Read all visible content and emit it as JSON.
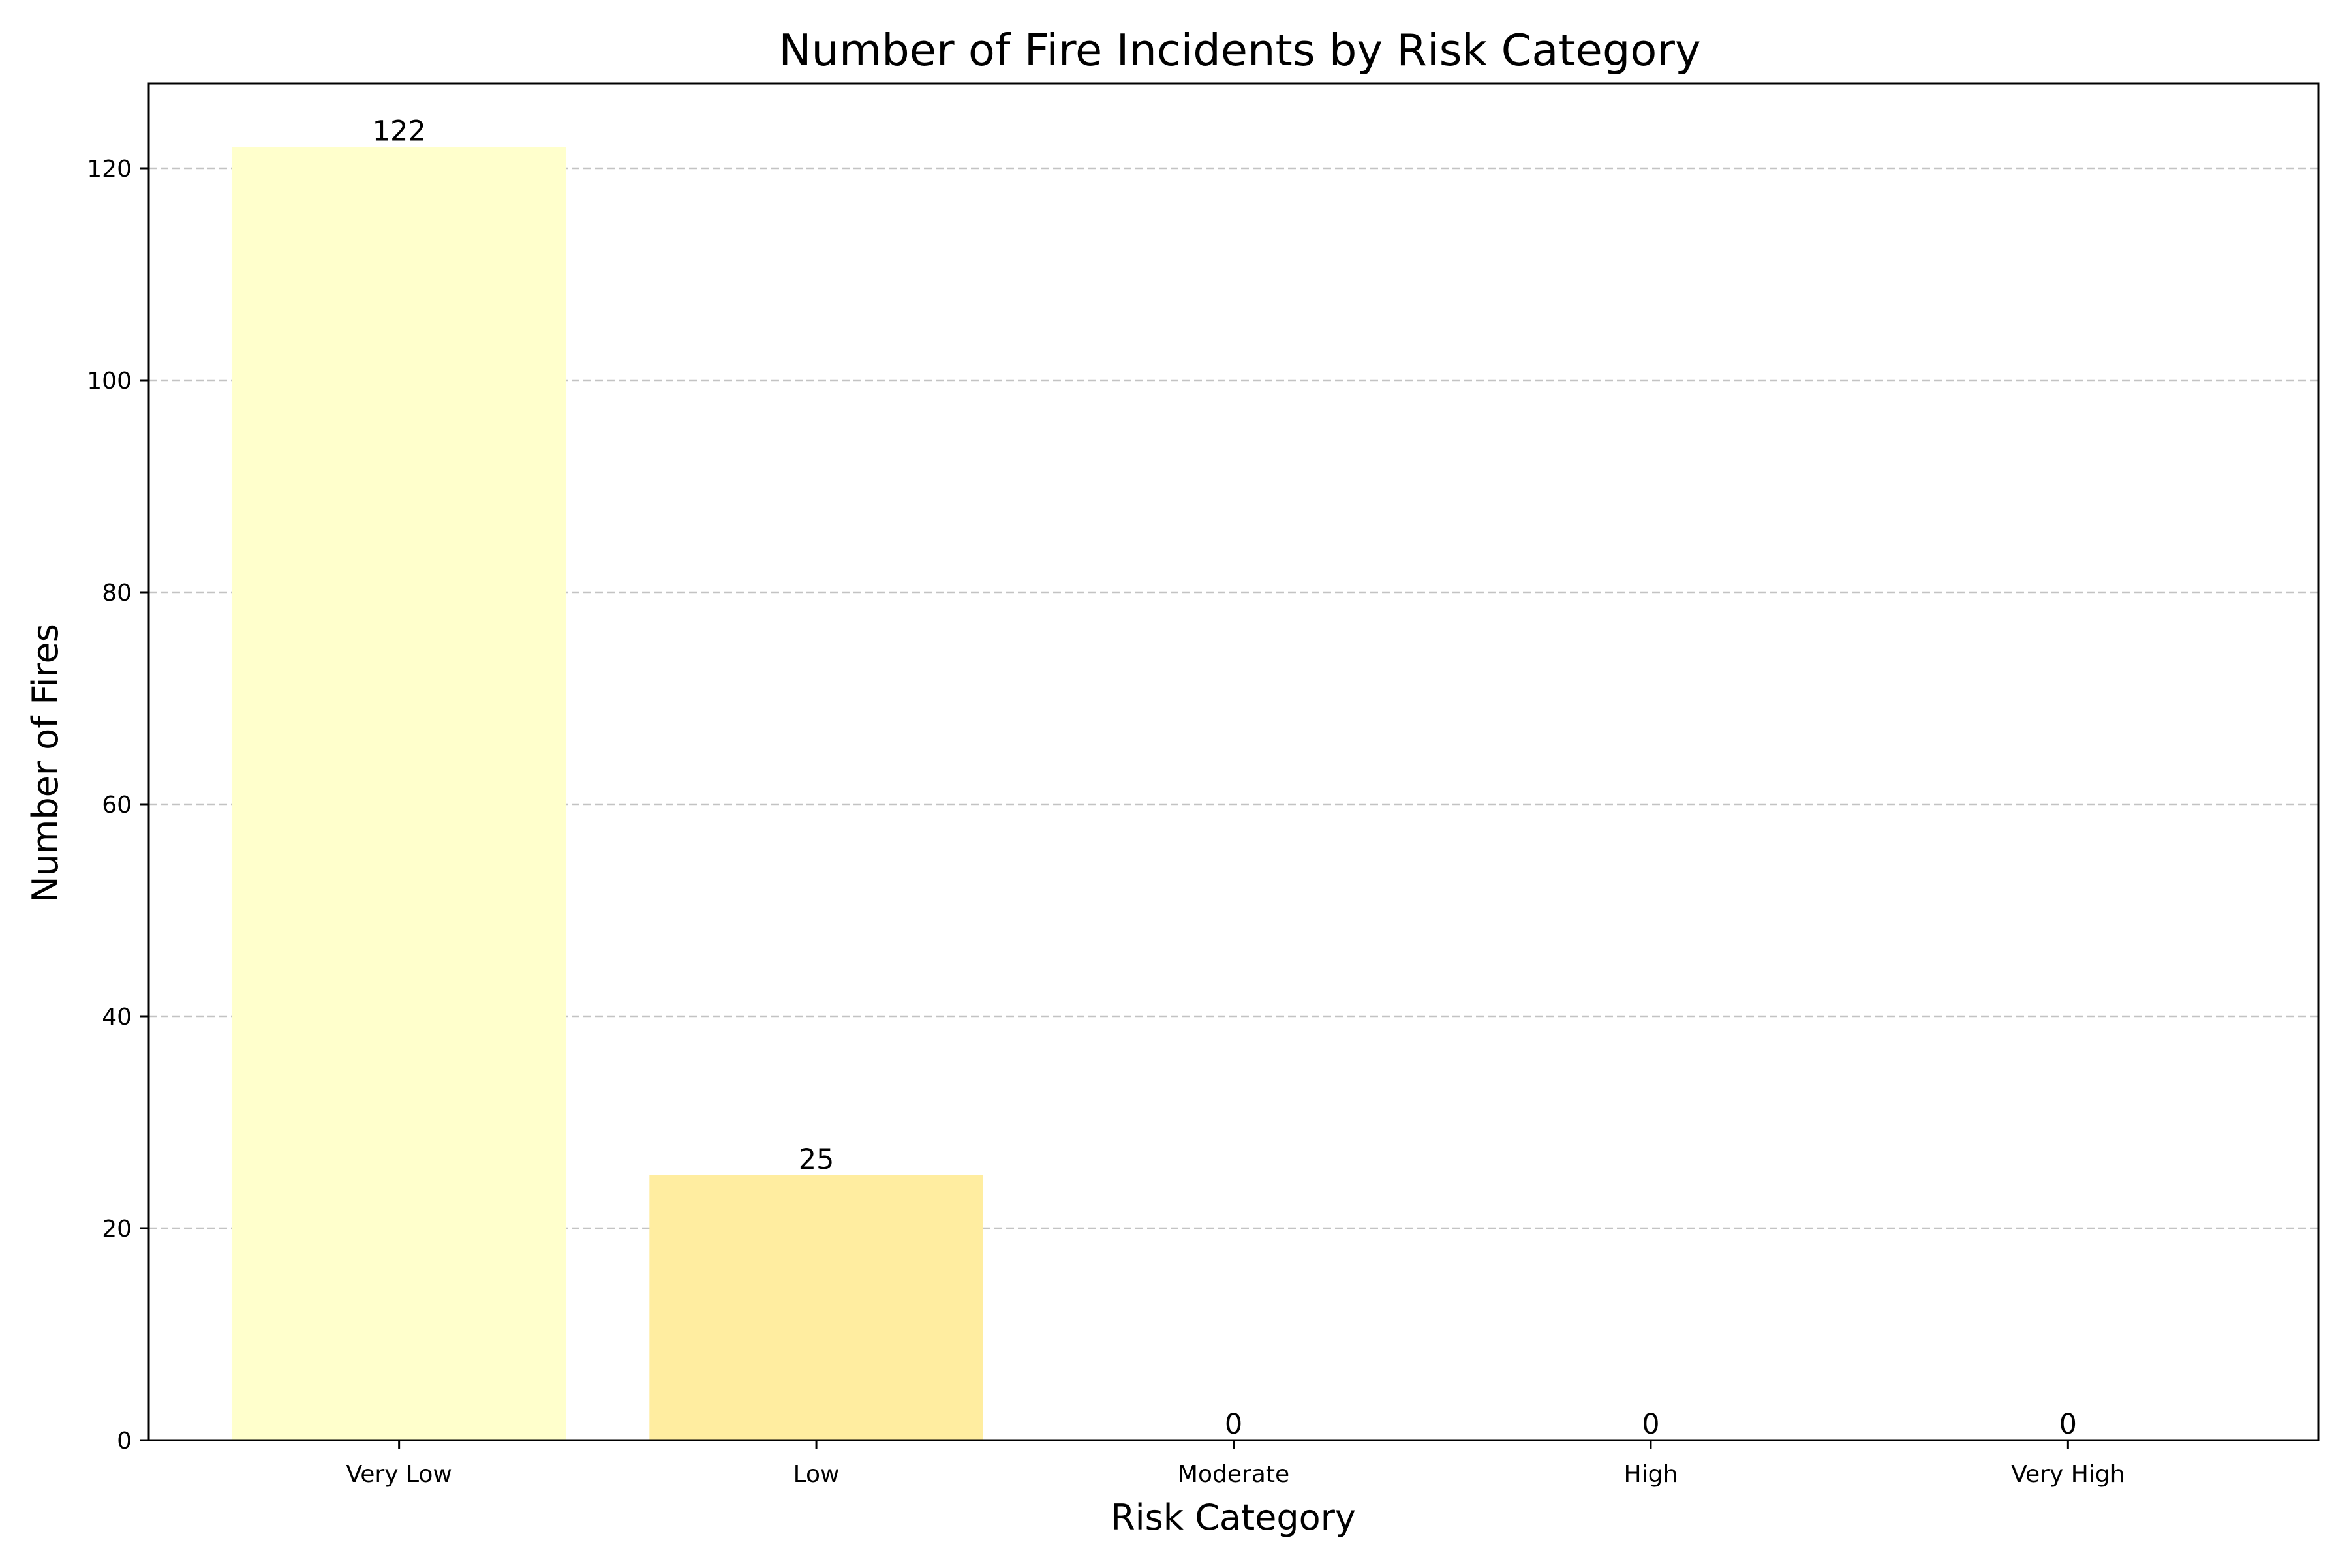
{
  "chart_data": {
    "type": "bar",
    "title": "Number of Fire Incidents by Risk Category",
    "xlabel": "Risk Category",
    "ylabel": "Number of Fires",
    "categories": [
      "Very Low",
      "Low",
      "Moderate",
      "High",
      "Very High"
    ],
    "values": [
      122,
      25,
      0,
      0,
      0
    ],
    "value_labels": [
      "122",
      "25",
      "0",
      "0",
      "0"
    ],
    "ylim": [
      0,
      128
    ],
    "yticks": [
      0,
      20,
      40,
      60,
      80,
      100,
      120
    ],
    "grid": "y-dashed",
    "colors": [
      "#ffffcc",
      "#ffeda0",
      "#fed976",
      "#feb24c",
      "#fd8d3c"
    ],
    "axis_color": "#000000",
    "grid_color": "#b0b0b0"
  }
}
